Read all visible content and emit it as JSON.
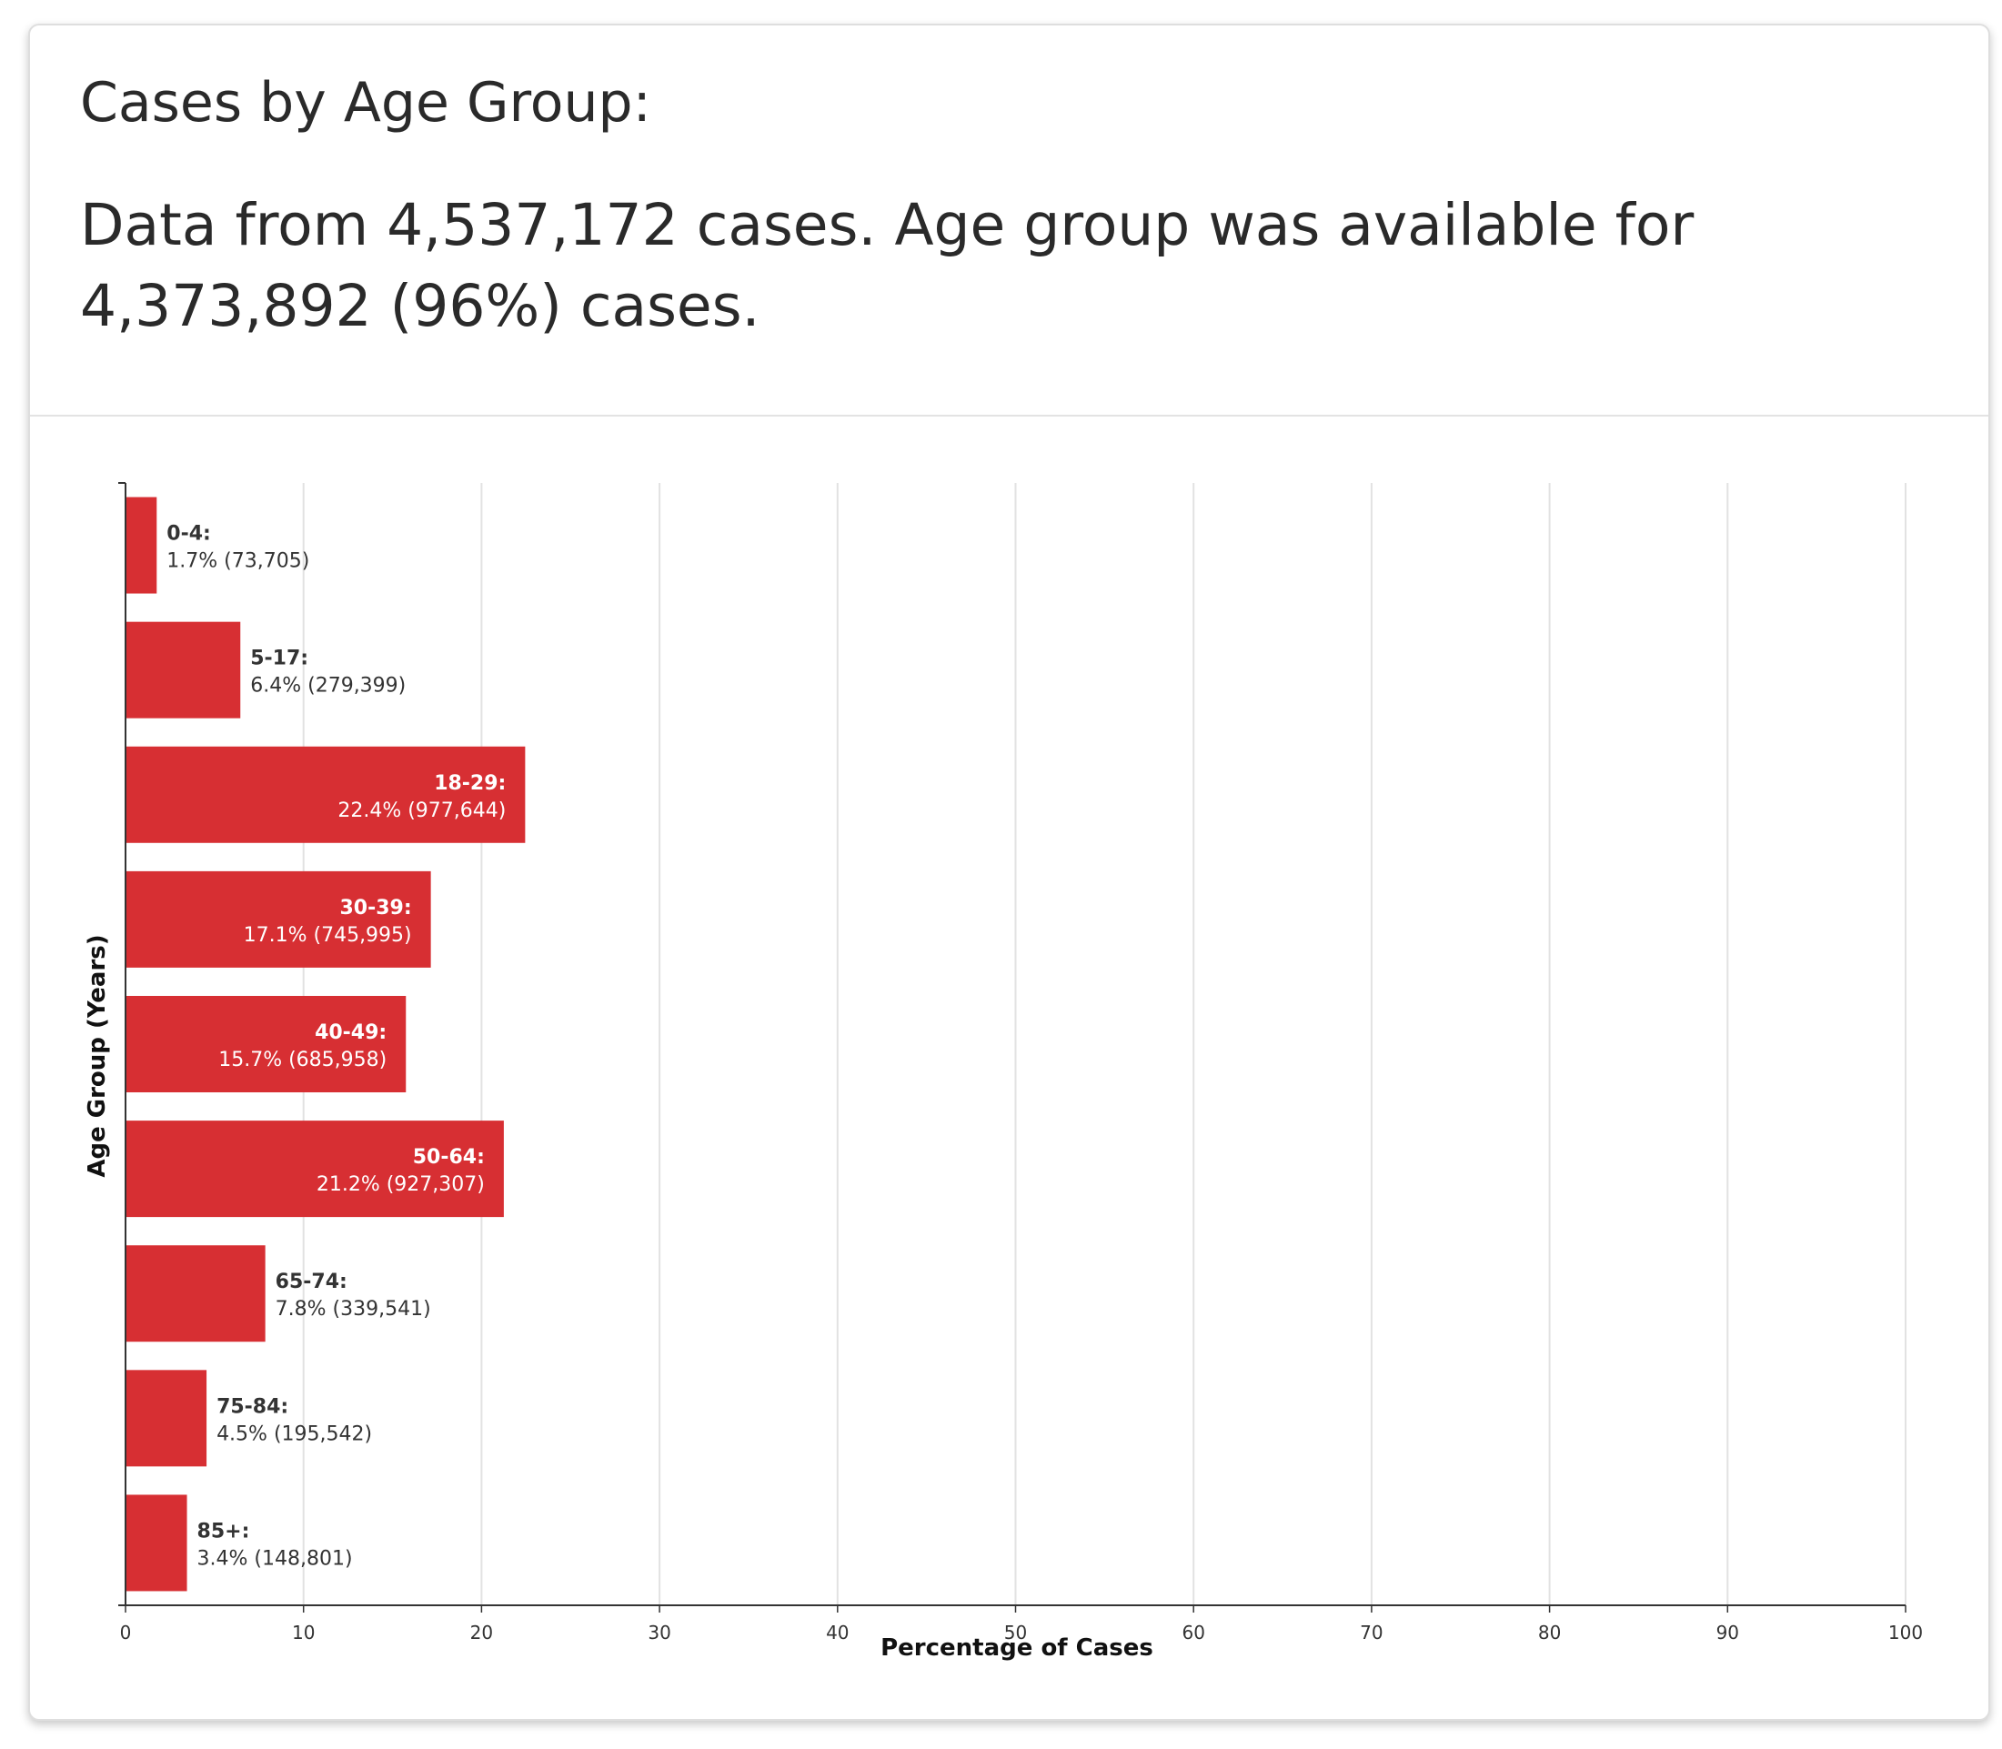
{
  "card": {
    "title": "Cases by Age Group:",
    "subtitle": "Data from 4,537,172 cases. Age group was available for 4,373,892 (96%) cases."
  },
  "colors": {
    "bar": "#d72f33",
    "grid": "#e2e2e2",
    "axis": "#333333",
    "label_dark": "#333333",
    "label_light": "#ffffff"
  },
  "chart_data": {
    "type": "bar",
    "orientation": "horizontal",
    "title": "",
    "xlabel": "Percentage of Cases",
    "ylabel": "Age Group (Years)",
    "xlim": [
      0,
      100
    ],
    "xticks": [
      0,
      10,
      20,
      30,
      40,
      50,
      60,
      70,
      80,
      90,
      100
    ],
    "grid": true,
    "categories": [
      "0-4",
      "5-17",
      "18-29",
      "30-39",
      "40-49",
      "50-64",
      "65-74",
      "75-84",
      "85+"
    ],
    "values": [
      1.7,
      6.4,
      22.4,
      17.1,
      15.7,
      21.2,
      7.8,
      4.5,
      3.4
    ],
    "counts": [
      "73,705",
      "279,399",
      "977,644",
      "745,995",
      "685,958",
      "927,307",
      "339,541",
      "195,542",
      "148,801"
    ],
    "data_labels": [
      {
        "name": "0-4:",
        "detail": "1.7% (73,705)"
      },
      {
        "name": "5-17:",
        "detail": "6.4% (279,399)"
      },
      {
        "name": "18-29:",
        "detail": "22.4% (977,644)"
      },
      {
        "name": "30-39:",
        "detail": "17.1% (745,995)"
      },
      {
        "name": "40-49:",
        "detail": "15.7% (685,958)"
      },
      {
        "name": "50-64:",
        "detail": "21.2% (927,307)"
      },
      {
        "name": "65-74:",
        "detail": "7.8% (339,541)"
      },
      {
        "name": "75-84:",
        "detail": "4.5% (195,542)"
      },
      {
        "name": "85+:",
        "detail": "3.4% (148,801)"
      }
    ]
  }
}
